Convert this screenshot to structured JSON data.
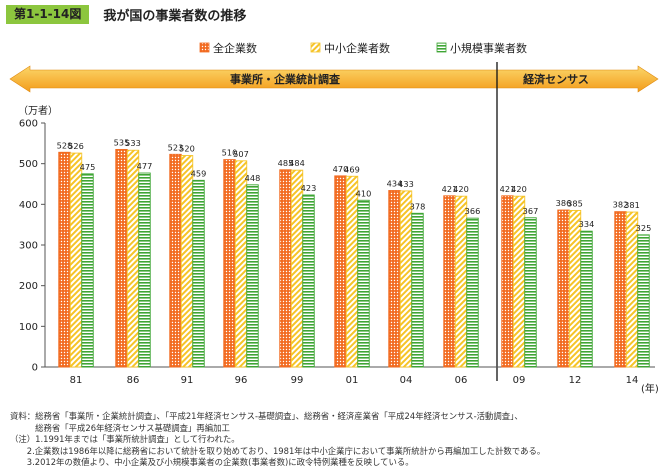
{
  "figure": {
    "number": "第1-1-14図",
    "title": "我が国の事業者数の推移"
  },
  "periods": [
    {
      "label": "事業所・企業統計調査"
    },
    {
      "label": "経済センサス"
    }
  ],
  "chart_data": {
    "type": "bar",
    "title": "",
    "ylabel": "（万者）",
    "xlabel": "(年)",
    "ylim": [
      0,
      600
    ],
    "yticks": [
      0,
      100,
      200,
      300,
      400,
      500,
      600
    ],
    "categories": [
      "81",
      "86",
      "91",
      "96",
      "99",
      "01",
      "04",
      "06",
      "09",
      "12",
      "14"
    ],
    "series": [
      {
        "name": "全企業数",
        "color": "#f26b21",
        "pattern": "dots",
        "values": [
          528,
          535,
          523,
          510,
          485,
          470,
          434,
          421,
          421,
          386,
          382
        ]
      },
      {
        "name": "中小企業者数",
        "color": "#f6c428",
        "pattern": "diagonal",
        "values": [
          526,
          533,
          520,
          507,
          484,
          469,
          433,
          420,
          420,
          385,
          381
        ]
      },
      {
        "name": "小規模事業者数",
        "color": "#3fa535",
        "pattern": "horizontal",
        "values": [
          475,
          477,
          459,
          448,
          423,
          410,
          378,
          366,
          367,
          334,
          325
        ]
      }
    ],
    "grid": false,
    "legend": "top-center"
  },
  "notes": [
    "資料：総務省「事業所・企業統計調査」、「平成21年経済センサス-基礎調査」、総務省・経済産業省「平成24年経済センサス-活動調査」、",
    "　　　総務省「平成26年経済センサス基礎調査」再編加工",
    "（注）1.1991年までは「事業所統計調査」として行われた。",
    "　　2.企業数は1986年以降に総務省において統計を取り始めており、1981年は中小企業庁において事業所統計から再編加工した計数である。",
    "　　3.2012年の数値より、中小企業及び小規模事業者の企業数(事業者数)に政令特例業種を反映している。"
  ]
}
